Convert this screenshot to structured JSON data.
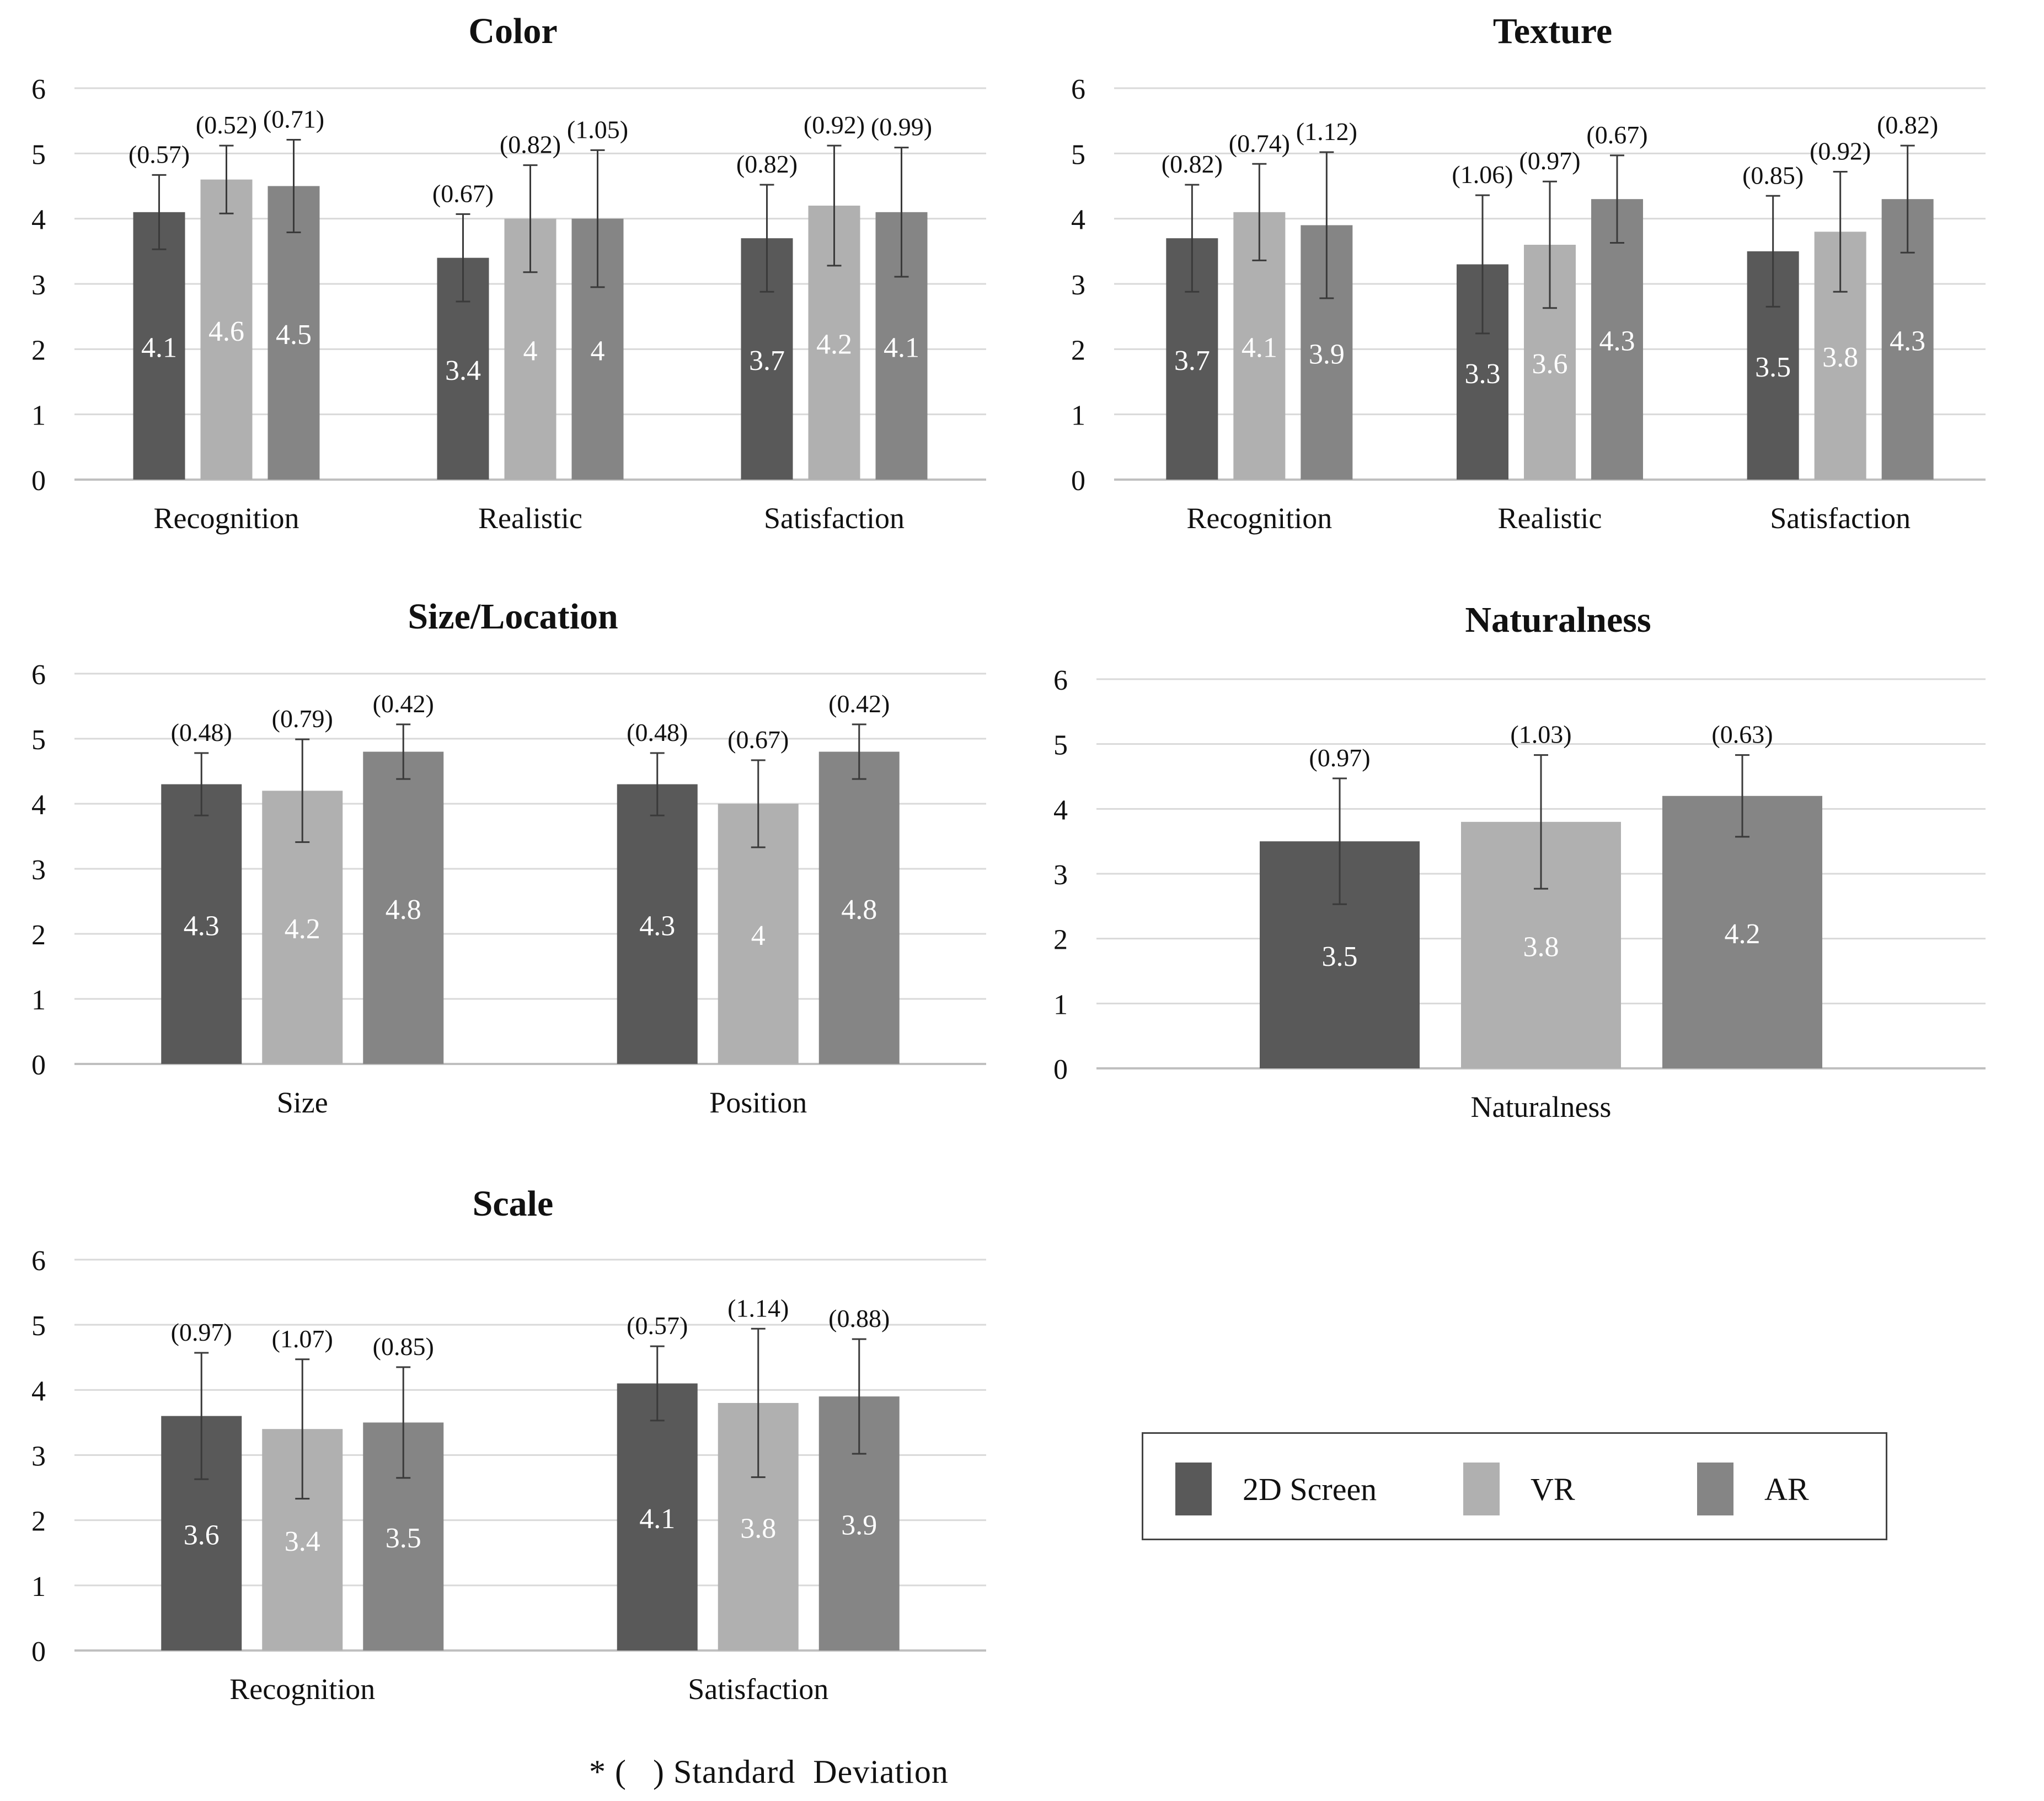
{
  "chart_data": [
    {
      "type": "bar",
      "title": "Color",
      "categories": [
        "Recognition",
        "Realistic",
        "Satisfaction"
      ],
      "ylim": [
        0,
        6
      ],
      "yticks": [
        0,
        1,
        2,
        3,
        4,
        5,
        6
      ],
      "grid": true,
      "series": [
        {
          "name": "2D Screen",
          "values": [
            4.1,
            3.4,
            3.7
          ],
          "sd": [
            0.57,
            0.67,
            0.82
          ],
          "value_labels": [
            "4.1",
            "3.4",
            "3.7"
          ],
          "sd_labels": [
            "(0.57)",
            "(0.67)",
            "(0.82)"
          ]
        },
        {
          "name": "VR",
          "values": [
            4.6,
            4,
            4.2
          ],
          "sd": [
            0.52,
            0.82,
            0.92
          ],
          "value_labels": [
            "4.6",
            "4",
            "4.2"
          ],
          "sd_labels": [
            "(0.52)",
            "(0.82)",
            "(0.92)"
          ]
        },
        {
          "name": "AR",
          "values": [
            4.5,
            4,
            4.1
          ],
          "sd": [
            0.71,
            1.05,
            0.99
          ],
          "value_labels": [
            "4.5",
            "4",
            "4.1"
          ],
          "sd_labels": [
            "(0.71)",
            "(1.05)",
            "(0.99)"
          ]
        }
      ]
    },
    {
      "type": "bar",
      "title": "Texture",
      "categories": [
        "Recognition",
        "Realistic",
        "Satisfaction"
      ],
      "ylim": [
        0,
        6
      ],
      "yticks": [
        0,
        1,
        2,
        3,
        4,
        5,
        6
      ],
      "grid": true,
      "series": [
        {
          "name": "2D Screen",
          "values": [
            3.7,
            3.3,
            3.5
          ],
          "sd": [
            0.82,
            1.06,
            0.85
          ],
          "value_labels": [
            "3.7",
            "3.3",
            "3.5"
          ],
          "sd_labels": [
            "(0.82)",
            "(1.06)",
            "(0.85)"
          ]
        },
        {
          "name": "VR",
          "values": [
            4.1,
            3.6,
            3.8
          ],
          "sd": [
            0.74,
            0.97,
            0.92
          ],
          "value_labels": [
            "4.1",
            "3.6",
            "3.8"
          ],
          "sd_labels": [
            "(0.74)",
            "(0.97)",
            "(0.92)"
          ]
        },
        {
          "name": "AR",
          "values": [
            3.9,
            4.3,
            4.3
          ],
          "sd": [
            1.12,
            0.67,
            0.82
          ],
          "value_labels": [
            "3.9",
            "4.3",
            "4.3"
          ],
          "sd_labels": [
            "(1.12)",
            "(0.67)",
            "(0.82)"
          ]
        }
      ]
    },
    {
      "type": "bar",
      "title": "Size/Location",
      "categories": [
        "Size",
        "Position"
      ],
      "ylim": [
        0,
        6
      ],
      "yticks": [
        0,
        1,
        2,
        3,
        4,
        5,
        6
      ],
      "grid": true,
      "series": [
        {
          "name": "2D Screen",
          "values": [
            4.3,
            4.3
          ],
          "sd": [
            0.48,
            0.48
          ],
          "value_labels": [
            "4.3",
            "4.3"
          ],
          "sd_labels": [
            "(0.48)",
            "(0.48)"
          ]
        },
        {
          "name": "VR",
          "values": [
            4.2,
            4
          ],
          "sd": [
            0.79,
            0.67
          ],
          "value_labels": [
            "4.2",
            "4"
          ],
          "sd_labels": [
            "(0.79)",
            "(0.67)"
          ]
        },
        {
          "name": "AR",
          "values": [
            4.8,
            4.8
          ],
          "sd": [
            0.42,
            0.42
          ],
          "value_labels": [
            "4.8",
            "4.8"
          ],
          "sd_labels": [
            "(0.42)",
            "(0.42)"
          ]
        }
      ]
    },
    {
      "type": "bar",
      "title": "Naturalness",
      "categories": [
        "Naturalness"
      ],
      "ylim": [
        0,
        6
      ],
      "yticks": [
        0,
        1,
        2,
        3,
        4,
        5,
        6
      ],
      "grid": true,
      "series": [
        {
          "name": "2D Screen",
          "values": [
            3.5
          ],
          "sd": [
            0.97
          ],
          "value_labels": [
            "3.5"
          ],
          "sd_labels": [
            "(0.97)"
          ]
        },
        {
          "name": "VR",
          "values": [
            3.8
          ],
          "sd": [
            1.03
          ],
          "value_labels": [
            "3.8"
          ],
          "sd_labels": [
            "(1.03)"
          ]
        },
        {
          "name": "AR",
          "values": [
            4.2
          ],
          "sd": [
            0.63
          ],
          "value_labels": [
            "4.2"
          ],
          "sd_labels": [
            "(0.63)"
          ]
        }
      ]
    },
    {
      "type": "bar",
      "title": "Scale",
      "categories": [
        "Recognition",
        "Satisfaction"
      ],
      "ylim": [
        0,
        6
      ],
      "yticks": [
        0,
        1,
        2,
        3,
        4,
        5,
        6
      ],
      "grid": true,
      "series": [
        {
          "name": "2D Screen",
          "values": [
            3.6,
            4.1
          ],
          "sd": [
            0.97,
            0.57
          ],
          "value_labels": [
            "3.6",
            "4.1"
          ],
          "sd_labels": [
            "(0.97)",
            "(0.57)"
          ]
        },
        {
          "name": "VR",
          "values": [
            3.4,
            3.8
          ],
          "sd": [
            1.07,
            1.14
          ],
          "value_labels": [
            "3.4",
            "3.8"
          ],
          "sd_labels": [
            "(1.07)",
            "(1.14)"
          ]
        },
        {
          "name": "AR",
          "values": [
            3.5,
            3.9
          ],
          "sd": [
            0.85,
            0.88
          ],
          "value_labels": [
            "3.5",
            "3.9"
          ],
          "sd_labels": [
            "(0.85)",
            "(0.88)"
          ]
        }
      ]
    }
  ],
  "legend": {
    "items": [
      {
        "label": "2D Screen",
        "color": "#595959"
      },
      {
        "label": "VR",
        "color": "#b0b0b0"
      },
      {
        "label": "AR",
        "color": "#858585"
      }
    ]
  },
  "footnote": "* (   ) Standard  Deviation",
  "colors": {
    "series": [
      "#595959",
      "#b0b0b0",
      "#858585"
    ],
    "grid": "#d9d9d9",
    "axis": "#bfbfbf",
    "text": "#111111",
    "bar_label": "#ffffff"
  }
}
